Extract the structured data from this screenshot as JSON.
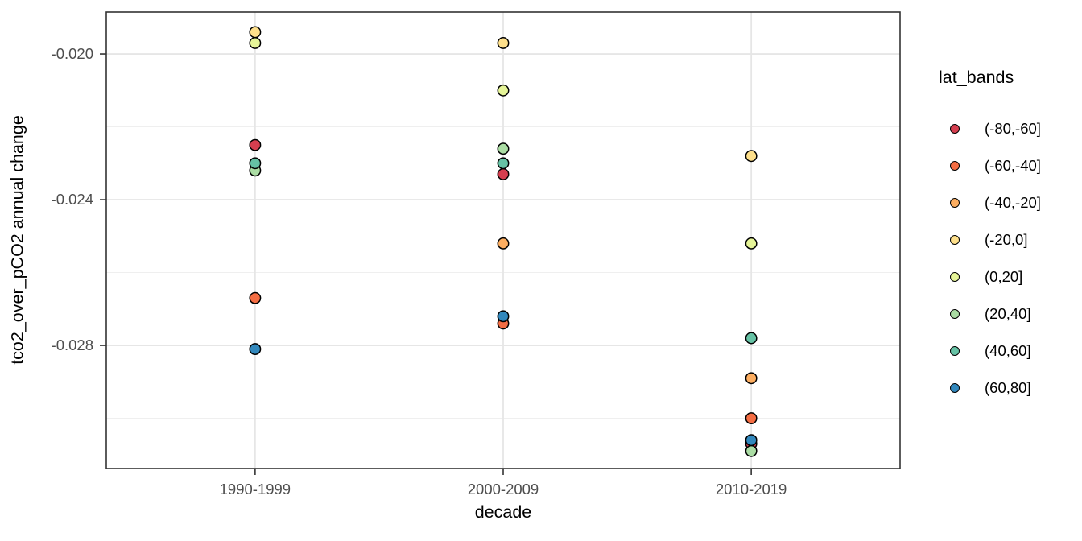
{
  "figure": {
    "background": "#ffffff"
  },
  "chart_data": {
    "type": "scatter",
    "title": "",
    "xlabel": "decade",
    "ylabel": "tco2_over_pCO2 annual change",
    "categories": [
      "1990-1999",
      "2000-2009",
      "2010-2019"
    ],
    "y_axis": {
      "domain": [
        -0.03138,
        -0.01885
      ],
      "major_ticks": [
        -0.02,
        -0.024,
        -0.028
      ],
      "major_tick_labels": [
        "-0.020",
        "-0.024",
        "-0.028"
      ],
      "minor_ticks": [
        -0.022,
        -0.026,
        -0.03
      ]
    },
    "grid": {
      "show": true,
      "major_color": "#e6e6e6",
      "minor_color": "#ededed"
    },
    "legend": {
      "title": "lat_bands",
      "position": "right",
      "entries": [
        {
          "label": "(-80,-60]",
          "color": "#d53e4f"
        },
        {
          "label": "(-60,-40]",
          "color": "#f46d43"
        },
        {
          "label": "(-40,-20]",
          "color": "#fdae61"
        },
        {
          "label": "(-20,0]",
          "color": "#fee08b"
        },
        {
          "label": "(0,20]",
          "color": "#e6f598"
        },
        {
          "label": "(20,40]",
          "color": "#abdda4"
        },
        {
          "label": "(40,60]",
          "color": "#66c2a5"
        },
        {
          "label": "(60,80]",
          "color": "#3288bd"
        }
      ]
    },
    "series": [
      {
        "name": "(-80,-60]",
        "color": "#d53e4f",
        "points": [
          {
            "x": "1990-1999",
            "y": -0.0225
          },
          {
            "x": "2000-2009",
            "y": -0.0233
          },
          {
            "x": "2010-2019",
            "y": -0.0307
          }
        ]
      },
      {
        "name": "(-60,-40]",
        "color": "#f46d43",
        "points": [
          {
            "x": "1990-1999",
            "y": -0.0267
          },
          {
            "x": "2000-2009",
            "y": -0.0274
          },
          {
            "x": "2010-2019",
            "y": -0.03
          }
        ]
      },
      {
        "name": "(-40,-20]",
        "color": "#fdae61",
        "points": [
          {
            "x": "2000-2009",
            "y": -0.0252
          },
          {
            "x": "2010-2019",
            "y": -0.0289
          }
        ]
      },
      {
        "name": "(-20,0]",
        "color": "#fee08b",
        "points": [
          {
            "x": "1990-1999",
            "y": -0.0194
          },
          {
            "x": "2000-2009",
            "y": -0.0197
          },
          {
            "x": "2010-2019",
            "y": -0.0228
          }
        ]
      },
      {
        "name": "(0,20]",
        "color": "#e6f598",
        "points": [
          {
            "x": "1990-1999",
            "y": -0.0197
          },
          {
            "x": "2000-2009",
            "y": -0.021
          },
          {
            "x": "2010-2019",
            "y": -0.0252
          }
        ]
      },
      {
        "name": "(20,40]",
        "color": "#abdda4",
        "points": [
          {
            "x": "1990-1999",
            "y": -0.0232
          },
          {
            "x": "2000-2009",
            "y": -0.0226
          },
          {
            "x": "2010-2019",
            "y": -0.0309
          }
        ]
      },
      {
        "name": "(40,60]",
        "color": "#66c2a5",
        "points": [
          {
            "x": "1990-1999",
            "y": -0.023
          },
          {
            "x": "2000-2009",
            "y": -0.023
          },
          {
            "x": "2010-2019",
            "y": -0.0278
          }
        ]
      },
      {
        "name": "(60,80]",
        "color": "#3288bd",
        "points": [
          {
            "x": "1990-1999",
            "y": -0.0281
          },
          {
            "x": "2000-2009",
            "y": -0.0272
          },
          {
            "x": "2010-2019",
            "y": -0.0306
          }
        ]
      }
    ],
    "style": {
      "point_stroke": "#000000",
      "tick_label_color": "#4d4d4d",
      "axis_color": "#333333",
      "panel_background": "#ffffff"
    }
  }
}
